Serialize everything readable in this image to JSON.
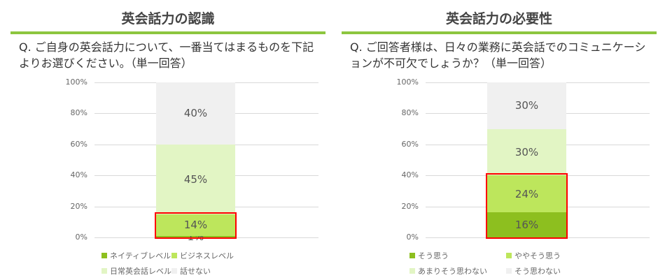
{
  "chart_data": [
    {
      "type": "bar",
      "stacked": true,
      "title": "英会話力の認識",
      "question": "Q. ご自身の英会話力について、一番当てはまるものを下記よりお選びください。（単一回答）",
      "yticks": [
        "0%",
        "20%",
        "40%",
        "60%",
        "80%",
        "100%"
      ],
      "ylim": [
        0,
        100
      ],
      "series": [
        {
          "name": "ネイティブレベル",
          "value": 1,
          "label": "1%",
          "color": "#8dbf1f"
        },
        {
          "name": "ビジネスレベル",
          "value": 14,
          "label": "14%",
          "color": "#bde65c"
        },
        {
          "name": "日常英会話レベル",
          "value": 45,
          "label": "45%",
          "color": "#e2f5c4"
        },
        {
          "name": "話せない",
          "value": 40,
          "label": "40%",
          "color": "#f0f0f0"
        }
      ],
      "highlight": [
        0,
        1
      ]
    },
    {
      "type": "bar",
      "stacked": true,
      "title": "英会話力の必要性",
      "question": "Q. ご回答者様は、日々の業務に英会話でのコミュニケーションが不可欠でしょうか？（単一回答）",
      "yticks": [
        "0%",
        "20%",
        "40%",
        "60%",
        "80%",
        "100%"
      ],
      "ylim": [
        0,
        100
      ],
      "series": [
        {
          "name": "そう思う",
          "value": 16,
          "label": "16%",
          "color": "#8dbf1f"
        },
        {
          "name": "ややそう思う",
          "value": 24,
          "label": "24%",
          "color": "#bde65c"
        },
        {
          "name": "あまりそう思わない",
          "value": 30,
          "label": "30%",
          "color": "#e2f5c4"
        },
        {
          "name": "そう思わない",
          "value": 30,
          "label": "30%",
          "color": "#f0f0f0"
        }
      ],
      "highlight": [
        0,
        1
      ]
    }
  ]
}
